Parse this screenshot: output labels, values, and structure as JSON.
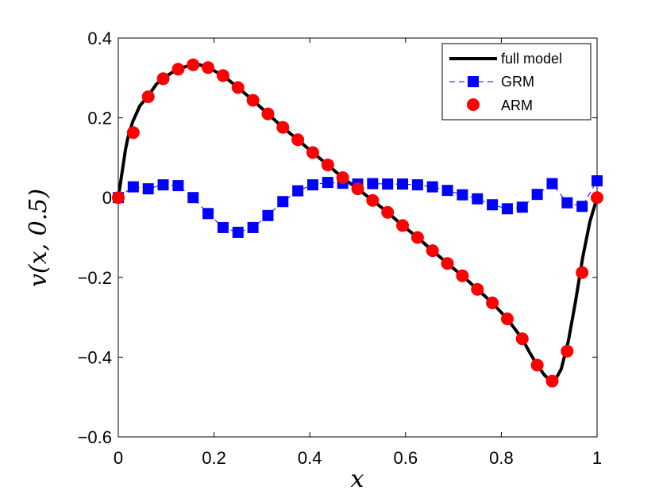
{
  "chart_data": {
    "type": "line",
    "title": "",
    "xlabel": "x",
    "ylabel": "v(x, 0.5)",
    "xlim": [
      0,
      1
    ],
    "ylim": [
      -0.6,
      0.4
    ],
    "x_ticks": [
      0,
      0.2,
      0.4,
      0.6,
      0.8,
      1
    ],
    "x_tick_labels": [
      "0",
      "0.2",
      "0.4",
      "0.6",
      "0.8",
      "1"
    ],
    "y_ticks": [
      -0.6,
      -0.4,
      -0.2,
      0,
      0.2,
      0.4
    ],
    "y_tick_labels": [
      "−0.6",
      "−0.4",
      "−0.2",
      "0",
      "0.2",
      "0.4"
    ],
    "grid": false,
    "legend_position": "top-right",
    "colors": {
      "full": "#000000",
      "grm": "#0000ff",
      "arm": "#ff0000"
    },
    "series": [
      {
        "name": "full model",
        "style": "solid-thick",
        "x": [
          0,
          0.005,
          0.01,
          0.015,
          0.02,
          0.03,
          0.045,
          0.0625,
          0.08,
          0.094,
          0.11,
          0.125,
          0.14,
          0.156,
          0.17,
          0.1875,
          0.2,
          0.21875,
          0.25,
          0.28125,
          0.3125,
          0.34375,
          0.375,
          0.40625,
          0.4375,
          0.46875,
          0.5,
          0.53125,
          0.5625,
          0.59375,
          0.625,
          0.65625,
          0.6875,
          0.71875,
          0.75,
          0.78125,
          0.8125,
          0.84375,
          0.86,
          0.875,
          0.89,
          0.9,
          0.906,
          0.915,
          0.925,
          0.94,
          0.955,
          0.97,
          0.985,
          1
        ],
        "y": [
          0,
          0.04,
          0.08,
          0.12,
          0.15,
          0.19,
          0.23,
          0.255,
          0.285,
          0.298,
          0.312,
          0.322,
          0.328,
          0.333,
          0.333,
          0.326,
          0.318,
          0.306,
          0.276,
          0.244,
          0.21,
          0.176,
          0.145,
          0.113,
          0.082,
          0.05,
          0.022,
          -0.007,
          -0.037,
          -0.07,
          -0.1,
          -0.133,
          -0.165,
          -0.196,
          -0.23,
          -0.264,
          -0.304,
          -0.354,
          -0.39,
          -0.42,
          -0.445,
          -0.456,
          -0.46,
          -0.452,
          -0.43,
          -0.36,
          -0.26,
          -0.15,
          -0.06,
          0
        ]
      },
      {
        "name": "GRM",
        "style": "dashed-square-markers",
        "x": [
          0,
          0.03125,
          0.0625,
          0.09375,
          0.125,
          0.15625,
          0.1875,
          0.21875,
          0.25,
          0.28125,
          0.3125,
          0.34375,
          0.375,
          0.40625,
          0.4375,
          0.46875,
          0.5,
          0.53125,
          0.5625,
          0.59375,
          0.625,
          0.65625,
          0.6875,
          0.71875,
          0.75,
          0.78125,
          0.8125,
          0.84375,
          0.875,
          0.90625,
          0.9375,
          0.96875,
          1
        ],
        "y": [
          0,
          0.027,
          0.022,
          0.032,
          0.03,
          0.0,
          -0.04,
          -0.075,
          -0.087,
          -0.075,
          -0.045,
          -0.01,
          0.017,
          0.032,
          0.038,
          0.036,
          0.034,
          0.035,
          0.034,
          0.034,
          0.032,
          0.027,
          0.018,
          0.007,
          -0.003,
          -0.018,
          -0.028,
          -0.024,
          0.008,
          0.035,
          -0.013,
          -0.022,
          0.042
        ]
      },
      {
        "name": "ARM",
        "style": "circle-markers",
        "x": [
          0,
          0.03125,
          0.0625,
          0.09375,
          0.125,
          0.15625,
          0.1875,
          0.21875,
          0.25,
          0.28125,
          0.3125,
          0.34375,
          0.375,
          0.40625,
          0.4375,
          0.46875,
          0.5,
          0.53125,
          0.5625,
          0.59375,
          0.625,
          0.65625,
          0.6875,
          0.71875,
          0.75,
          0.78125,
          0.8125,
          0.84375,
          0.875,
          0.90625,
          0.9375,
          0.96875,
          1
        ],
        "y": [
          0,
          0.163,
          0.253,
          0.298,
          0.322,
          0.333,
          0.326,
          0.306,
          0.276,
          0.244,
          0.21,
          0.176,
          0.145,
          0.113,
          0.082,
          0.05,
          0.022,
          -0.007,
          -0.037,
          -0.07,
          -0.1,
          -0.133,
          -0.165,
          -0.196,
          -0.23,
          -0.264,
          -0.304,
          -0.354,
          -0.42,
          -0.46,
          -0.385,
          -0.188,
          0
        ]
      }
    ]
  }
}
